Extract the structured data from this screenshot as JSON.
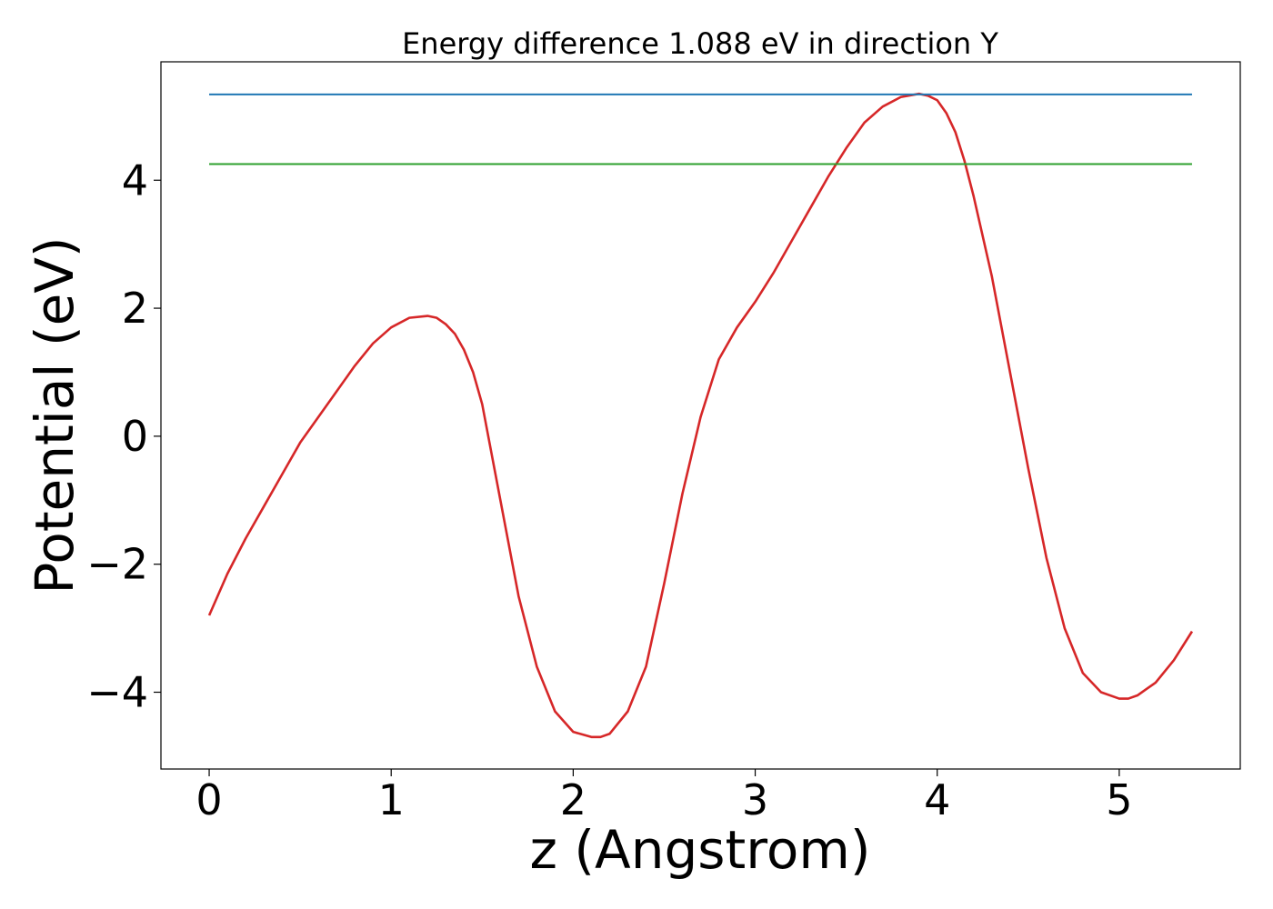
{
  "chart_data": {
    "type": "line",
    "title": "Energy difference 1.088 eV in direction Y",
    "xlabel": "z (Angstrom)",
    "ylabel": "Potential (eV)",
    "xlim": [
      -0.265,
      5.665
    ],
    "ylim": [
      -5.2,
      5.85
    ],
    "xticks": [
      0,
      1,
      2,
      3,
      4,
      5
    ],
    "yticks": [
      -4,
      -2,
      0,
      2,
      4
    ],
    "grid": false,
    "series": [
      {
        "color": "#d62728",
        "x": [
          0,
          0.1,
          0.2,
          0.3,
          0.4,
          0.5,
          0.6,
          0.7,
          0.8,
          0.9,
          1.0,
          1.1,
          1.2,
          1.25,
          1.3,
          1.35,
          1.4,
          1.45,
          1.5,
          1.6,
          1.7,
          1.8,
          1.9,
          2.0,
          2.1,
          2.15,
          2.2,
          2.3,
          2.4,
          2.5,
          2.6,
          2.7,
          2.8,
          2.9,
          3.0,
          3.1,
          3.2,
          3.3,
          3.4,
          3.5,
          3.6,
          3.7,
          3.8,
          3.9,
          3.95,
          4.0,
          4.05,
          4.1,
          4.15,
          4.2,
          4.3,
          4.4,
          4.5,
          4.6,
          4.7,
          4.8,
          4.9,
          5.0,
          5.05,
          5.1,
          5.15,
          5.2,
          5.3,
          5.4
        ],
        "y": [
          -2.8,
          -2.15,
          -1.6,
          -1.1,
          -0.6,
          -0.1,
          0.3,
          0.7,
          1.1,
          1.45,
          1.7,
          1.85,
          1.88,
          1.85,
          1.75,
          1.6,
          1.35,
          1.0,
          0.5,
          -1.0,
          -2.5,
          -3.6,
          -4.3,
          -4.62,
          -4.7,
          -4.7,
          -4.65,
          -4.3,
          -3.6,
          -2.3,
          -0.9,
          0.3,
          1.2,
          1.7,
          2.1,
          2.55,
          3.05,
          3.55,
          4.05,
          4.5,
          4.9,
          5.15,
          5.3,
          5.35,
          5.32,
          5.25,
          5.05,
          4.75,
          4.3,
          3.75,
          2.5,
          1.0,
          -0.5,
          -1.9,
          -3.0,
          -3.7,
          -4.0,
          -4.1,
          -4.1,
          -4.05,
          -3.95,
          -3.85,
          -3.5,
          -3.05
        ]
      },
      {
        "color": "#1f77b4",
        "x": [
          0,
          5.4
        ],
        "y": [
          5.34,
          5.34
        ]
      },
      {
        "color": "#2ca02c",
        "x": [
          0,
          5.4
        ],
        "y": [
          4.252,
          4.252
        ]
      }
    ]
  }
}
